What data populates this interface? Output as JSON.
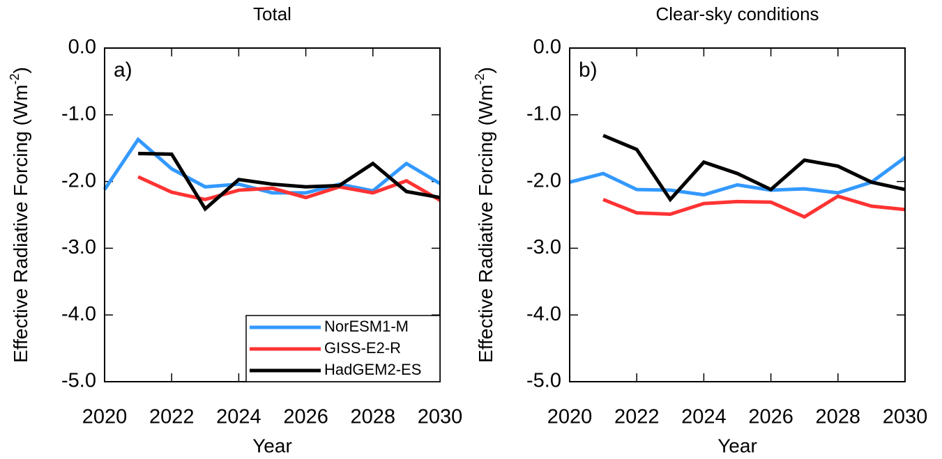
{
  "chart_data": [
    {
      "type": "line",
      "title": "Total",
      "annotation": "a)",
      "xlabel": "Year",
      "ylabel": {
        "text": "Effective Radiative Forcing (Wm",
        "sup": "-2",
        "close": ")"
      },
      "x": [
        2020,
        2021,
        2022,
        2023,
        2024,
        2025,
        2026,
        2027,
        2028,
        2029,
        2030
      ],
      "xlim": [
        2020,
        2030
      ],
      "xticks": [
        2020,
        2022,
        2024,
        2026,
        2028,
        2030
      ],
      "ylim": [
        -5,
        0
      ],
      "yticks": [
        {
          "value": -5,
          "label": "-5.0"
        },
        {
          "value": -4,
          "label": "-4.0"
        },
        {
          "value": -3,
          "label": "-3.0"
        },
        {
          "value": -2,
          "label": "-2.0"
        },
        {
          "value": -1,
          "label": "-1.0"
        },
        {
          "value": 0,
          "label": "0.0"
        }
      ],
      "legend": "lower right",
      "series": [
        {
          "name": "NorESM1-M",
          "color": "#3399ff",
          "values": [
            -2.12,
            -1.37,
            -1.81,
            -2.08,
            -2.04,
            -2.17,
            -2.17,
            -2.04,
            -2.14,
            -1.73,
            -2.03
          ]
        },
        {
          "name": "GISS-E2-R",
          "color": "#ff3333",
          "values": [
            null,
            -1.93,
            -2.16,
            -2.27,
            -2.13,
            -2.1,
            -2.24,
            -2.08,
            -2.17,
            -1.99,
            -2.28
          ]
        },
        {
          "name": "HadGEM2-ES",
          "color": "#000000",
          "values": [
            null,
            -1.58,
            -1.59,
            -2.41,
            -1.97,
            -2.04,
            -2.08,
            -2.06,
            -1.73,
            -2.15,
            -2.24
          ]
        }
      ]
    },
    {
      "type": "line",
      "title": "Clear-sky conditions",
      "annotation": "b)",
      "xlabel": "Year",
      "ylabel": {
        "text": "Effective Radiative Forcing (Wm",
        "sup": "-2",
        "close": ")"
      },
      "x": [
        2020,
        2021,
        2022,
        2023,
        2024,
        2025,
        2026,
        2027,
        2028,
        2029,
        2030
      ],
      "xlim": [
        2020,
        2030
      ],
      "xticks": [
        2020,
        2022,
        2024,
        2026,
        2028,
        2030
      ],
      "ylim": [
        -5,
        0
      ],
      "yticks": [
        {
          "value": -5,
          "label": "-5.0"
        },
        {
          "value": -4,
          "label": "-4.0"
        },
        {
          "value": -3,
          "label": "-3.0"
        },
        {
          "value": -2,
          "label": "-2.0"
        },
        {
          "value": -1,
          "label": "-1.0"
        },
        {
          "value": 0,
          "label": "0.0"
        }
      ],
      "series": [
        {
          "color": "#3399ff",
          "values": [
            -2.01,
            -1.88,
            -2.12,
            -2.13,
            -2.2,
            -2.05,
            -2.13,
            -2.11,
            -2.17,
            -2.01,
            -1.64
          ]
        },
        {
          "color": "#ff3333",
          "values": [
            null,
            -2.27,
            -2.47,
            -2.49,
            -2.33,
            -2.3,
            -2.31,
            -2.53,
            -2.22,
            -2.37,
            -2.42
          ]
        },
        {
          "color": "#000000",
          "values": [
            null,
            -1.31,
            -1.52,
            -2.27,
            -1.71,
            -1.88,
            -2.12,
            -1.68,
            -1.77,
            -2.01,
            -2.12
          ]
        }
      ]
    }
  ]
}
